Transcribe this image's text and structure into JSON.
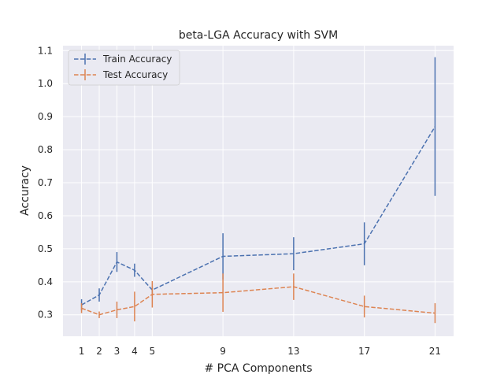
{
  "chart_data": {
    "type": "line",
    "title": "beta-LGA Accuracy with SVM",
    "xlabel": "# PCA Components",
    "ylabel": "Accuracy",
    "x": [
      1,
      2,
      3,
      4,
      5,
      9,
      13,
      17,
      21
    ],
    "x_ticks": [
      "1",
      "2",
      "3",
      "4",
      "5",
      "9",
      "13",
      "17",
      "21"
    ],
    "xlim": [
      -0.05,
      22.05
    ],
    "ylim": [
      0.235,
      1.115
    ],
    "y_ticks": [
      0.3,
      0.4,
      0.5,
      0.6,
      0.7,
      0.8,
      0.9,
      1.0,
      1.1
    ],
    "y_tick_labels": [
      "0.3",
      "0.4",
      "0.5",
      "0.6",
      "0.7",
      "0.8",
      "0.9",
      "1.0",
      "1.1"
    ],
    "grid": true,
    "legend_position": "top-left",
    "line_style": "dashed",
    "error_bars": true,
    "background": "#eaeaf2",
    "series": [
      {
        "name": "Train Accuracy",
        "color": "#4c72b0",
        "values": [
          0.33,
          0.36,
          0.46,
          0.435,
          0.375,
          0.477,
          0.485,
          0.515,
          0.87
        ],
        "errors": [
          0.017,
          0.02,
          0.03,
          0.02,
          0.01,
          0.07,
          0.05,
          0.065,
          0.21
        ]
      },
      {
        "name": "Test Accuracy",
        "color": "#dd8452",
        "values": [
          0.32,
          0.3,
          0.315,
          0.325,
          0.362,
          0.367,
          0.385,
          0.325,
          0.305
        ],
        "errors": [
          0.015,
          0.01,
          0.025,
          0.045,
          0.04,
          0.058,
          0.04,
          0.033,
          0.03
        ]
      }
    ]
  }
}
